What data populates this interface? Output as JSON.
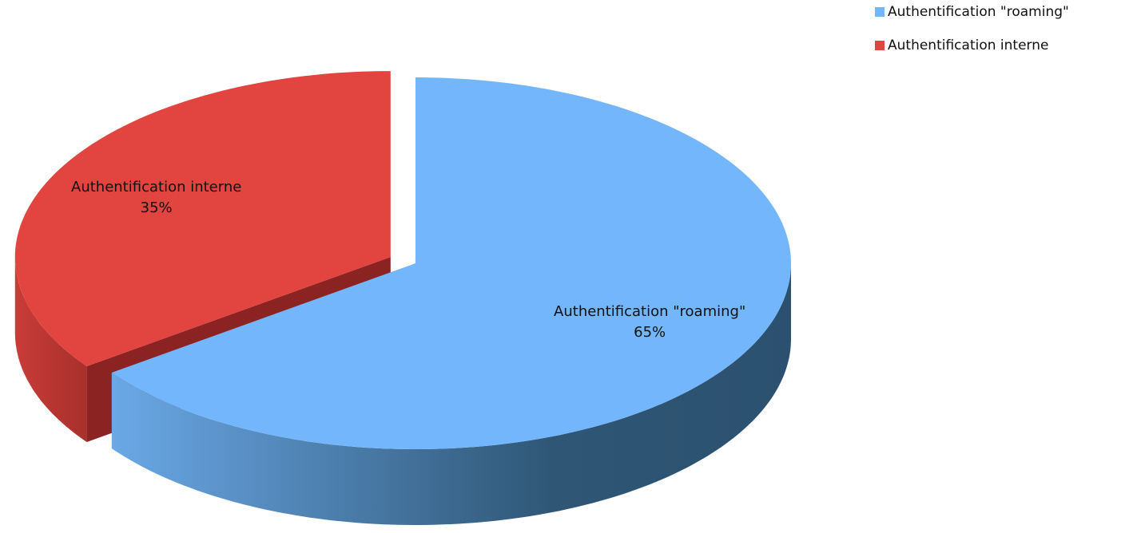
{
  "chart_data": {
    "type": "pie",
    "categories": [
      "Authentification \"roaming\"",
      "Authentification interne"
    ],
    "values": [
      65,
      35
    ],
    "value_labels": [
      "65%",
      "35%"
    ],
    "colors": [
      "#74b6fb",
      "#e24440"
    ],
    "legend": "top-right"
  }
}
